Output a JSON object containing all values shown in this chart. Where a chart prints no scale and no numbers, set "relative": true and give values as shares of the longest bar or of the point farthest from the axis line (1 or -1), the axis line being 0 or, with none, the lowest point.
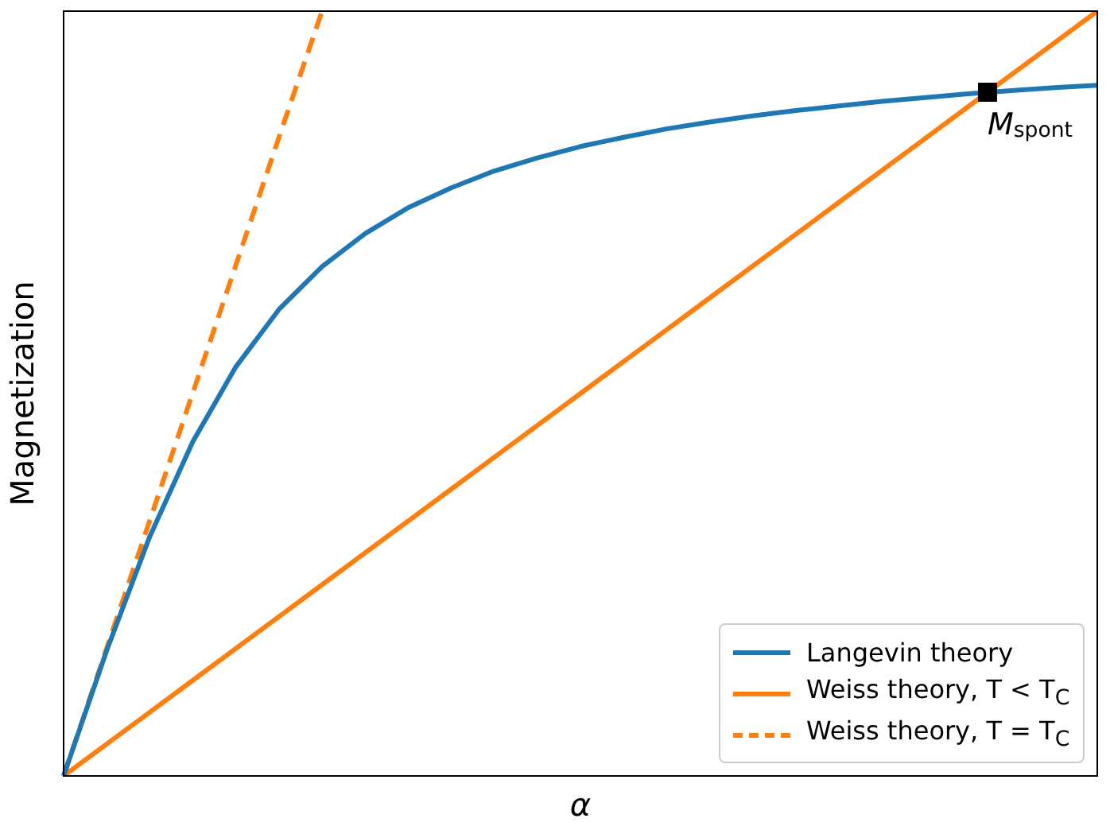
{
  "chart_data": {
    "type": "line",
    "relative": true,
    "xlabel": "α",
    "ylabel": "Magnetization",
    "legend": "bottom right",
    "categories": [
      null,
      null,
      null,
      null,
      null,
      null,
      null,
      null,
      null,
      null,
      null,
      null,
      null,
      null,
      null,
      null,
      null,
      null,
      null,
      null,
      null,
      null,
      null,
      null,
      null
    ],
    "series": [
      {
        "name": "Langevin theory",
        "color": "#1f77b4",
        "line_style": "solid",
        "marker": "none",
        "values": [
          0,
          0.164,
          0.313,
          0.437,
          0.535,
          0.61,
          0.666,
          0.709,
          0.743,
          0.769,
          0.791,
          0.808,
          0.823,
          0.835,
          0.846,
          0.855,
          0.863,
          0.87,
          0.876,
          0.882,
          0.887,
          0.892,
          0.896,
          0.9,
          0.903
        ]
      },
      {
        "name": "Weiss theory, T < T$_{C}$",
        "color": "#ff7f0e",
        "line_style": "solid",
        "marker": "none",
        "values": [
          0,
          0.0417,
          0.0833,
          0.125,
          0.1667,
          0.2083,
          0.25,
          0.2917,
          0.3333,
          0.375,
          0.4167,
          0.4583,
          0.5,
          0.5417,
          0.5833,
          0.625,
          0.6667,
          0.7083,
          0.75,
          0.7917,
          0.8333,
          0.875,
          0.9167,
          0.9583,
          1
        ]
      },
      {
        "name": "Weiss theory, T = T$_{C}$",
        "color": "#ff7f0e",
        "line_style": "dashed",
        "marker": "none",
        "values": [
          0,
          0.167,
          0.334,
          0.501,
          0.668,
          0.835,
          1,
          null,
          null,
          null,
          null,
          null,
          null,
          null,
          null,
          null,
          null,
          null,
          null,
          null,
          null,
          null,
          null,
          null,
          null
        ]
      }
    ],
    "annotations": [
      "M$_{spont}$"
    ]
  }
}
